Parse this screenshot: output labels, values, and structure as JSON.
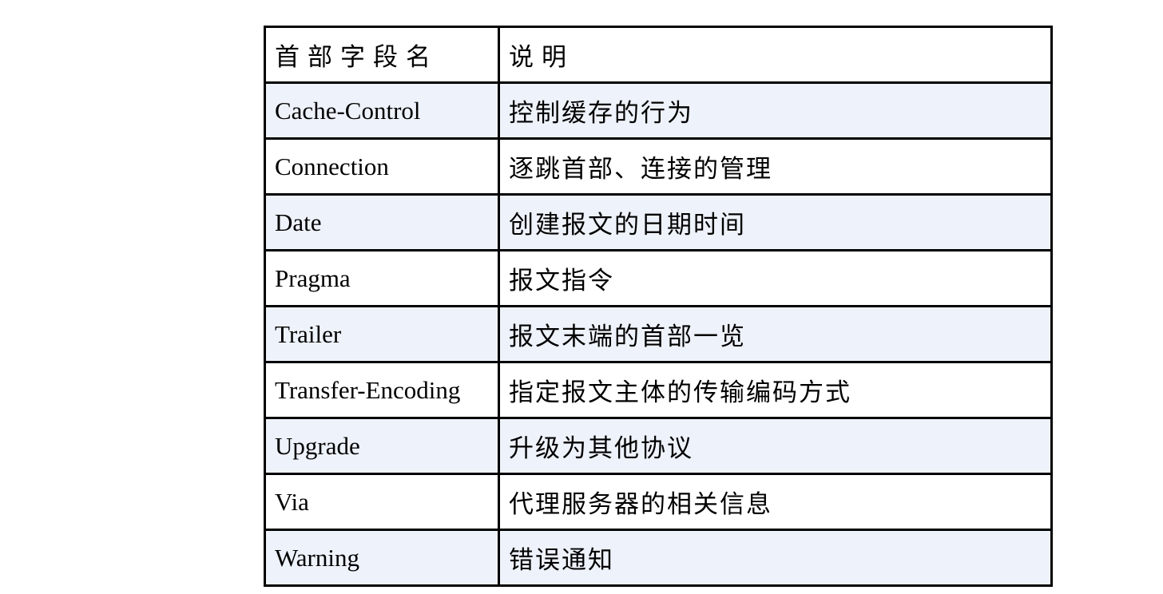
{
  "table": {
    "title_semantic": "http-general-header-fields-table",
    "columns": {
      "field": "首部字段名",
      "description": "说明"
    },
    "rows": [
      {
        "field": "Cache-Control",
        "description": "控制缓存的行为"
      },
      {
        "field": "Connection",
        "description": "逐跳首部、连接的管理"
      },
      {
        "field": "Date",
        "description": "创建报文的日期时间"
      },
      {
        "field": "Pragma",
        "description": "报文指令"
      },
      {
        "field": "Trailer",
        "description": "报文末端的首部一览"
      },
      {
        "field": "Transfer-Encoding",
        "description": "指定报文主体的传输编码方式"
      },
      {
        "field": "Upgrade",
        "description": "升级为其他协议"
      },
      {
        "field": "Via",
        "description": "代理服务器的相关信息"
      },
      {
        "field": "Warning",
        "description": "错误通知"
      }
    ],
    "colors": {
      "row_alt_bg": "#eef2fa",
      "row_bg": "#ffffff",
      "border": "#000000",
      "text": "#000000",
      "page_bg": "#ffffff"
    }
  }
}
